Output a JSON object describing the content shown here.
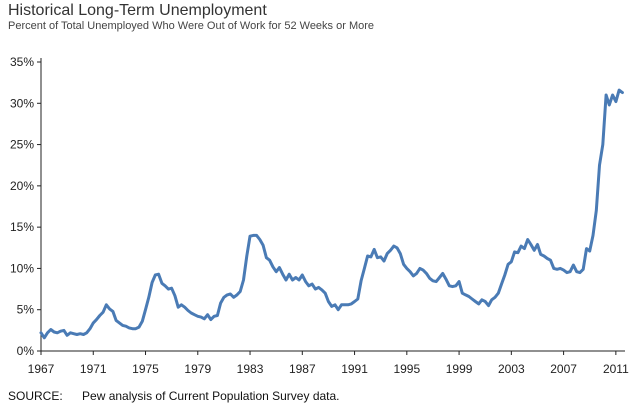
{
  "title": "Historical Long-Term Unemployment",
  "subtitle": "Percent of Total Unemployed Who Were Out of Work for 52 Weeks or More",
  "source": {
    "label": "SOURCE:",
    "text": "Pew analysis of Current Population Survey data."
  },
  "chart_data": {
    "type": "line",
    "title": "Historical Long-Term Unemployment",
    "subtitle": "Percent of Total Unemployed Who Were Out of Work for 52 Weeks or More",
    "xlabel": "",
    "ylabel": "",
    "xlim": [
      1967,
      2011.7
    ],
    "ylim": [
      0,
      35
    ],
    "x_ticks": [
      "1967",
      "1971",
      "1975",
      "1979",
      "1983",
      "1987",
      "1991",
      "1995",
      "1999",
      "2003",
      "2007",
      "2011"
    ],
    "x_tick_values": [
      1967,
      1971,
      1975,
      1979,
      1983,
      1987,
      1991,
      1995,
      1999,
      2003,
      2007,
      2011
    ],
    "y_ticks": [
      "0%",
      "5%",
      "10%",
      "15%",
      "20%",
      "25%",
      "30%",
      "35%"
    ],
    "y_tick_values": [
      0,
      5,
      10,
      15,
      20,
      25,
      30,
      35
    ],
    "grid": false,
    "color": "#4a7bb5",
    "series": [
      {
        "x": [
          1967.0,
          1967.25,
          1967.5,
          1967.75,
          1968.0,
          1968.25,
          1968.5,
          1968.75,
          1969.0,
          1969.25,
          1969.5,
          1969.75,
          1970.0,
          1970.25,
          1970.5,
          1970.75,
          1971.0,
          1971.25,
          1971.5,
          1971.75,
          1972.0,
          1972.25,
          1972.5,
          1972.75,
          1973.0,
          1973.25,
          1973.5,
          1973.75,
          1974.0,
          1974.25,
          1974.5,
          1974.75,
          1975.0,
          1975.25,
          1975.5,
          1975.75,
          1976.0,
          1976.25,
          1976.5,
          1976.75,
          1977.0,
          1977.25,
          1977.5,
          1977.75,
          1978.0,
          1978.25,
          1978.5,
          1978.75,
          1979.0,
          1979.25,
          1979.5,
          1979.75,
          1980.0,
          1980.25,
          1980.5,
          1980.75,
          1981.0,
          1981.25,
          1981.5,
          1981.75,
          1982.0,
          1982.25,
          1982.5,
          1982.75,
          1983.0,
          1983.25,
          1983.5,
          1983.75,
          1984.0,
          1984.25,
          1984.5,
          1984.75,
          1985.0,
          1985.25,
          1985.5,
          1985.75,
          1986.0,
          1986.25,
          1986.5,
          1986.75,
          1987.0,
          1987.25,
          1987.5,
          1987.75,
          1988.0,
          1988.25,
          1988.5,
          1988.75,
          1989.0,
          1989.25,
          1989.5,
          1989.75,
          1990.0,
          1990.25,
          1990.5,
          1990.75,
          1991.0,
          1991.25,
          1991.5,
          1991.75,
          1992.0,
          1992.25,
          1992.5,
          1992.75,
          1993.0,
          1993.25,
          1993.5,
          1993.75,
          1994.0,
          1994.25,
          1994.5,
          1994.75,
          1995.0,
          1995.25,
          1995.5,
          1995.75,
          1996.0,
          1996.25,
          1996.5,
          1996.75,
          1997.0,
          1997.25,
          1997.5,
          1997.75,
          1998.0,
          1998.25,
          1998.5,
          1998.75,
          1999.0,
          1999.25,
          1999.5,
          1999.75,
          2000.0,
          2000.25,
          2000.5,
          2000.75,
          2001.0,
          2001.25,
          2001.5,
          2001.75,
          2002.0,
          2002.25,
          2002.5,
          2002.75,
          2003.0,
          2003.25,
          2003.5,
          2003.75,
          2004.0,
          2004.25,
          2004.5,
          2004.75,
          2005.0,
          2005.25,
          2005.5,
          2005.75,
          2006.0,
          2006.25,
          2006.5,
          2006.75,
          2007.0,
          2007.25,
          2007.5,
          2007.75,
          2008.0,
          2008.25,
          2008.5,
          2008.75,
          2009.0,
          2009.25,
          2009.5,
          2009.75,
          2010.0,
          2010.25,
          2010.5,
          2010.75,
          2011.0,
          2011.25,
          2011.5
        ],
        "values": [
          2.2,
          1.6,
          2.2,
          2.6,
          2.3,
          2.2,
          2.4,
          2.5,
          1.9,
          2.2,
          2.1,
          2.0,
          2.1,
          2.0,
          2.2,
          2.7,
          3.4,
          3.8,
          4.3,
          4.7,
          5.6,
          5.1,
          4.8,
          3.7,
          3.4,
          3.1,
          3.0,
          2.8,
          2.7,
          2.7,
          2.9,
          3.6,
          5.0,
          6.5,
          8.3,
          9.2,
          9.3,
          8.2,
          7.9,
          7.5,
          7.6,
          6.7,
          5.3,
          5.6,
          5.3,
          4.9,
          4.6,
          4.4,
          4.2,
          4.1,
          3.9,
          4.4,
          3.8,
          4.2,
          4.3,
          5.8,
          6.5,
          6.8,
          6.9,
          6.5,
          6.8,
          7.2,
          8.6,
          11.5,
          13.9,
          14.0,
          14.0,
          13.5,
          12.8,
          11.3,
          11.0,
          10.2,
          9.6,
          10.1,
          9.3,
          8.6,
          9.3,
          8.6,
          8.9,
          8.6,
          9.2,
          8.4,
          7.9,
          8.1,
          7.5,
          7.7,
          7.4,
          7.0,
          6.0,
          5.4,
          5.6,
          5.0,
          5.6,
          5.6,
          5.6,
          5.7,
          6.0,
          6.3,
          8.5,
          10.0,
          11.5,
          11.4,
          12.3,
          11.3,
          11.4,
          10.9,
          11.8,
          12.2,
          12.7,
          12.5,
          11.8,
          10.5,
          10.0,
          9.6,
          9.1,
          9.4,
          10.0,
          9.8,
          9.4,
          8.8,
          8.5,
          8.4,
          8.9,
          9.4,
          8.7,
          7.9,
          7.8,
          7.9,
          8.4,
          7.0,
          6.8,
          6.6,
          6.3,
          6.0,
          5.7,
          6.2,
          6.0,
          5.5,
          6.2,
          6.5,
          7.0,
          8.1,
          9.2,
          10.5,
          10.8,
          12.0,
          11.9,
          12.7,
          12.4,
          13.5,
          12.9,
          12.2,
          12.9,
          11.7,
          11.5,
          11.2,
          11.0,
          10.0,
          9.9,
          10.0,
          9.8,
          9.5,
          9.6,
          10.4,
          9.6,
          9.5,
          9.9,
          12.4,
          12.1,
          14.0,
          17.0,
          22.5,
          25.0,
          31.0,
          29.8,
          31.0,
          30.2,
          31.6,
          31.3
        ]
      }
    ]
  }
}
